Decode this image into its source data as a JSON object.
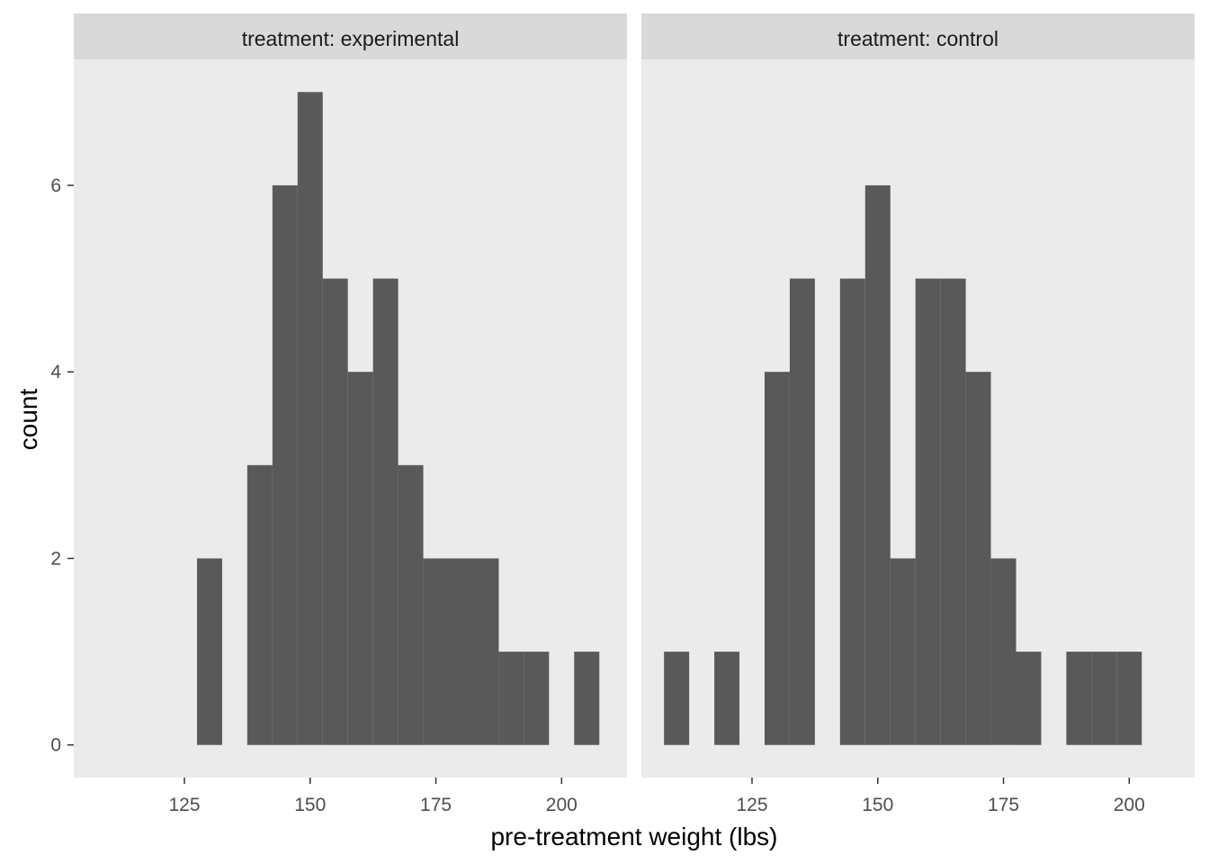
{
  "chart_data": {
    "type": "bar",
    "subtype": "histogram",
    "faceted": true,
    "facet_layout": "1 row, 2 columns",
    "bin_width": 5,
    "xlabel": "pre-treatment weight (lbs)",
    "ylabel": "count",
    "x_ticks": [
      125,
      150,
      175,
      200
    ],
    "y_ticks": [
      0,
      2,
      4,
      6
    ],
    "xlim": [
      103,
      213
    ],
    "ylim": [
      -0.35,
      7.35
    ],
    "grid": false,
    "legend": "none",
    "colors": {
      "bar": "#595959",
      "panel_background": "#ebebeb",
      "strip_background": "#d9d9d9",
      "tick": "#333333"
    },
    "panels": [
      {
        "strip_label": "treatment: experimental",
        "bins": [
          {
            "x": 130,
            "count": 2
          },
          {
            "x": 135,
            "count": 0
          },
          {
            "x": 140,
            "count": 3
          },
          {
            "x": 145,
            "count": 6
          },
          {
            "x": 150,
            "count": 7
          },
          {
            "x": 155,
            "count": 5
          },
          {
            "x": 160,
            "count": 4
          },
          {
            "x": 165,
            "count": 5
          },
          {
            "x": 170,
            "count": 3
          },
          {
            "x": 175,
            "count": 2
          },
          {
            "x": 180,
            "count": 2
          },
          {
            "x": 185,
            "count": 2
          },
          {
            "x": 190,
            "count": 1
          },
          {
            "x": 195,
            "count": 1
          },
          {
            "x": 200,
            "count": 0
          },
          {
            "x": 205,
            "count": 1
          }
        ]
      },
      {
        "strip_label": "treatment: control",
        "bins": [
          {
            "x": 110,
            "count": 1
          },
          {
            "x": 115,
            "count": 0
          },
          {
            "x": 120,
            "count": 1
          },
          {
            "x": 125,
            "count": 0
          },
          {
            "x": 130,
            "count": 4
          },
          {
            "x": 135,
            "count": 5
          },
          {
            "x": 140,
            "count": 0
          },
          {
            "x": 145,
            "count": 5
          },
          {
            "x": 150,
            "count": 6
          },
          {
            "x": 155,
            "count": 2
          },
          {
            "x": 160,
            "count": 5
          },
          {
            "x": 165,
            "count": 5
          },
          {
            "x": 170,
            "count": 4
          },
          {
            "x": 175,
            "count": 2
          },
          {
            "x": 180,
            "count": 1
          },
          {
            "x": 185,
            "count": 0
          },
          {
            "x": 190,
            "count": 1
          },
          {
            "x": 195,
            "count": 1
          },
          {
            "x": 200,
            "count": 1
          }
        ]
      }
    ]
  }
}
